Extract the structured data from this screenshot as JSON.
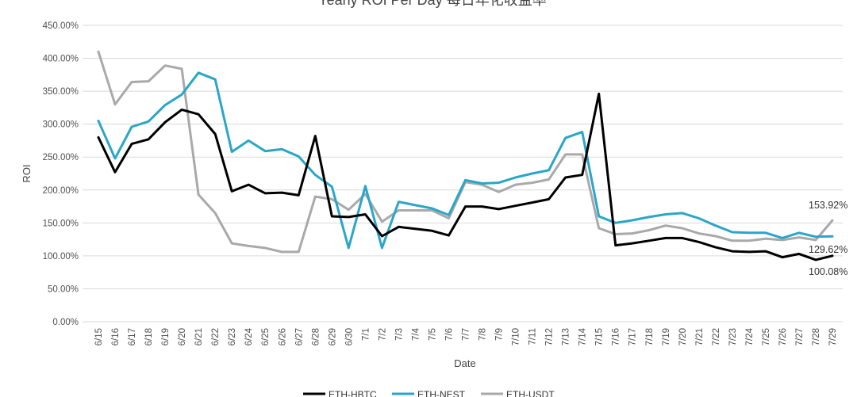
{
  "chart_data": {
    "type": "line",
    "title": "Yearly ROI Per Day 每日年化收益率",
    "xlabel": "Date",
    "ylabel": "ROI",
    "ylim": [
      0,
      450
    ],
    "y_tick_labels": [
      "0.00%",
      "50.00%",
      "100.00%",
      "150.00%",
      "200.00%",
      "250.00%",
      "300.00%",
      "350.00%",
      "400.00%",
      "450.00%"
    ],
    "grid": true,
    "legend_position": "bottom",
    "categories": [
      "6/15",
      "6/16",
      "6/17",
      "6/18",
      "6/19",
      "6/20",
      "6/21",
      "6/22",
      "6/23",
      "6/24",
      "6/25",
      "6/26",
      "6/27",
      "6/28",
      "6/29",
      "6/30",
      "7/1",
      "7/2",
      "7/3",
      "7/4",
      "7/5",
      "7/6",
      "7/7",
      "7/8",
      "7/9",
      "7/10",
      "7/11",
      "7/12",
      "7/13",
      "7/14",
      "7/15",
      "7/16",
      "7/17",
      "7/18",
      "7/19",
      "7/20",
      "7/21",
      "7/22",
      "7/23",
      "7/24",
      "7/25",
      "7/26",
      "7/27",
      "7/28",
      "7/29"
    ],
    "series": [
      {
        "name": "ETH-HBTC",
        "color": "#000000",
        "values": [
          280,
          227,
          270,
          277,
          303,
          322,
          315,
          285,
          198,
          208,
          195,
          196,
          192,
          282,
          160,
          159,
          163,
          130,
          144,
          141,
          138,
          131,
          175,
          175,
          171,
          176,
          181,
          186,
          219,
          223,
          346,
          116,
          119,
          123,
          127,
          127,
          121,
          113,
          107,
          106,
          107,
          98,
          103,
          94,
          100.08
        ],
        "end_label": "100.08%"
      },
      {
        "name": "ETH-NEST",
        "color": "#2aa6c8",
        "values": [
          305,
          248,
          296,
          304,
          329,
          345,
          378,
          368,
          258,
          275,
          259,
          262,
          251,
          223,
          205,
          112,
          206,
          112,
          182,
          177,
          172,
          162,
          215,
          210,
          211,
          219,
          225,
          230,
          279,
          288,
          160,
          150,
          154,
          159,
          163,
          165,
          157,
          146,
          136,
          135,
          135,
          127,
          135,
          129,
          129.62
        ],
        "end_label": "129.62%"
      },
      {
        "name": "ETH-USDT",
        "color": "#a9a9a9",
        "values": [
          410,
          330,
          364,
          365,
          389,
          384,
          193,
          165,
          119,
          115,
          112,
          106,
          106,
          190,
          186,
          170,
          194,
          152,
          169,
          169,
          169,
          157,
          212,
          208,
          197,
          208,
          211,
          216,
          254,
          254,
          142,
          133,
          134,
          139,
          146,
          142,
          134,
          130,
          123,
          123,
          126,
          124,
          128,
          124,
          153.92
        ],
        "end_label": "153.92%"
      }
    ]
  }
}
